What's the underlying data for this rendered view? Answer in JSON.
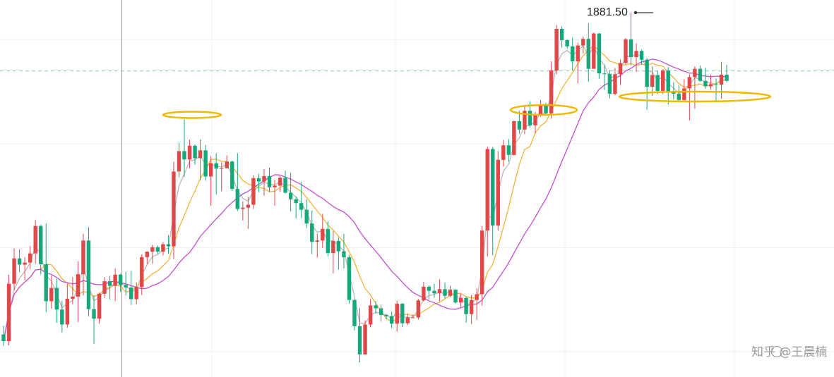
{
  "watermark": "知乎 @王晨楠",
  "chart_data": {
    "type": "candlestick",
    "title": "",
    "xlabel": "",
    "ylabel": "",
    "ylim": [
      1800,
      1890
    ],
    "grid": true,
    "annotations": {
      "high_label": "1881.50",
      "high_value": 1881.5,
      "reference_line": 1867.5
    },
    "colors": {
      "up": "#e04848",
      "down": "#14a87a",
      "ma_fast": "#b8b8b8",
      "ma_mid": "#f0b43c",
      "ma_slow": "#c24fd0",
      "reference": "#8fc9bd",
      "highlight": "#f0b800",
      "crosshair": "#999999"
    },
    "ohlc": [
      [
        1804.1,
        1806.2,
        1801.3,
        1802.5
      ],
      [
        1802.5,
        1818.5,
        1801.5,
        1816.3
      ],
      [
        1816.3,
        1824.8,
        1814.8,
        1822.4
      ],
      [
        1822.4,
        1824.6,
        1819.1,
        1820.9
      ],
      [
        1820.9,
        1822.7,
        1817.1,
        1821.4
      ],
      [
        1821.4,
        1825.4,
        1819.8,
        1823.6
      ],
      [
        1823.6,
        1831.6,
        1821.1,
        1830.2
      ],
      [
        1830.2,
        1830.5,
        1818.5,
        1821.0
      ],
      [
        1821.0,
        1830.8,
        1809.5,
        1812.1
      ],
      [
        1812.1,
        1818.3,
        1810.3,
        1815.3
      ],
      [
        1815.3,
        1817.5,
        1806.9,
        1810.1
      ],
      [
        1810.1,
        1812.2,
        1804.6,
        1806.5
      ],
      [
        1806.5,
        1816.3,
        1805.7,
        1812.7
      ],
      [
        1812.7,
        1817.9,
        1811.3,
        1813.2
      ],
      [
        1813.2,
        1821.7,
        1807.1,
        1818.6
      ],
      [
        1818.6,
        1828.3,
        1813.5,
        1826.7
      ],
      [
        1826.7,
        1829.9,
        1808.5,
        1810.2
      ],
      [
        1810.2,
        1813.5,
        1801.8,
        1807.9
      ],
      [
        1807.9,
        1814.2,
        1806.7,
        1813.9
      ],
      [
        1813.9,
        1817.9,
        1812.9,
        1816.9
      ],
      [
        1816.9,
        1818.2,
        1812.5,
        1815.8
      ],
      [
        1815.8,
        1820.0,
        1812.1,
        1818.5
      ],
      [
        1818.5,
        1818.7,
        1814.3,
        1816.0
      ],
      [
        1816.0,
        1819.2,
        1813.5,
        1815.4
      ],
      [
        1815.4,
        1819.4,
        1811.2,
        1812.6
      ],
      [
        1812.6,
        1816.6,
        1811.3,
        1815.5
      ],
      [
        1815.5,
        1823.4,
        1813.6,
        1822.7
      ],
      [
        1822.7,
        1824.1,
        1821.0,
        1824.0
      ],
      [
        1824.0,
        1825.7,
        1821.1,
        1825.1
      ],
      [
        1825.1,
        1825.5,
        1823.5,
        1824.0
      ],
      [
        1824.0,
        1826.3,
        1823.1,
        1825.8
      ],
      [
        1825.8,
        1828.0,
        1823.5,
        1825.3
      ],
      [
        1825.3,
        1845.7,
        1822.2,
        1843.3
      ],
      [
        1843.3,
        1850.2,
        1841.9,
        1848.2
      ],
      [
        1848.2,
        1855.8,
        1842.0,
        1846.2
      ],
      [
        1846.2,
        1850.9,
        1844.1,
        1849.5
      ],
      [
        1849.5,
        1849.8,
        1844.9,
        1846.5
      ],
      [
        1846.5,
        1851.0,
        1841.2,
        1848.4
      ],
      [
        1848.4,
        1849.7,
        1841.1,
        1842.1
      ],
      [
        1842.1,
        1847.0,
        1835.1,
        1845.3
      ],
      [
        1845.3,
        1847.7,
        1837.8,
        1844.0
      ],
      [
        1844.0,
        1845.5,
        1838.6,
        1844.1
      ],
      [
        1844.1,
        1847.2,
        1844.0,
        1845.7
      ],
      [
        1845.7,
        1845.9,
        1838.6,
        1839.1
      ],
      [
        1839.1,
        1847.7,
        1833.8,
        1834.3
      ],
      [
        1834.3,
        1836.1,
        1831.5,
        1834.6
      ],
      [
        1834.6,
        1837.2,
        1829.5,
        1835.3
      ],
      [
        1835.3,
        1842.4,
        1834.3,
        1841.7
      ],
      [
        1841.7,
        1842.7,
        1838.3,
        1840.9
      ],
      [
        1840.9,
        1843.9,
        1837.5,
        1842.2
      ],
      [
        1842.2,
        1844.2,
        1838.3,
        1839.5
      ],
      [
        1839.5,
        1841.3,
        1835.1,
        1839.9
      ],
      [
        1839.9,
        1842.2,
        1838.4,
        1841.8
      ],
      [
        1841.8,
        1843.5,
        1838.0,
        1838.2
      ],
      [
        1838.2,
        1843.0,
        1833.7,
        1836.6
      ],
      [
        1836.6,
        1837.3,
        1832.0,
        1835.7
      ],
      [
        1835.7,
        1840.8,
        1832.1,
        1834.1
      ],
      [
        1834.1,
        1836.6,
        1829.7,
        1830.8
      ],
      [
        1830.8,
        1833.9,
        1823.4,
        1826.4
      ],
      [
        1826.4,
        1828.4,
        1822.6,
        1826.7
      ],
      [
        1826.7,
        1833.1,
        1824.9,
        1829.5
      ],
      [
        1829.5,
        1831.4,
        1822.9,
        1823.7
      ],
      [
        1823.7,
        1829.0,
        1818.8,
        1826.6
      ],
      [
        1826.6,
        1827.4,
        1819.7,
        1824.1
      ],
      [
        1824.1,
        1828.3,
        1820.0,
        1822.7
      ],
      [
        1822.7,
        1823.3,
        1811.5,
        1812.4
      ],
      [
        1812.4,
        1812.5,
        1805.1,
        1806.1
      ],
      [
        1806.1,
        1810.5,
        1797.4,
        1799.3
      ],
      [
        1799.3,
        1807.5,
        1799.3,
        1806.5
      ],
      [
        1806.5,
        1812.6,
        1805.8,
        1811.1
      ],
      [
        1811.1,
        1812.1,
        1809.1,
        1810.4
      ],
      [
        1810.4,
        1811.3,
        1807.2,
        1808.8
      ],
      [
        1808.8,
        1809.0,
        1807.8,
        1808.5
      ],
      [
        1808.5,
        1809.6,
        1805.6,
        1806.7
      ],
      [
        1806.7,
        1812.2,
        1804.8,
        1811.5
      ],
      [
        1811.5,
        1811.7,
        1805.9,
        1806.8
      ],
      [
        1806.8,
        1809.0,
        1806.4,
        1808.2
      ],
      [
        1808.2,
        1808.9,
        1808.0,
        1808.2
      ],
      [
        1808.2,
        1812.7,
        1807.7,
        1812.3
      ],
      [
        1812.3,
        1816.8,
        1812.0,
        1815.6
      ],
      [
        1815.6,
        1815.9,
        1812.6,
        1814.6
      ],
      [
        1814.6,
        1816.3,
        1812.9,
        1814.0
      ],
      [
        1814.0,
        1817.3,
        1812.1,
        1815.0
      ],
      [
        1815.0,
        1816.6,
        1812.7,
        1813.4
      ],
      [
        1813.4,
        1815.8,
        1813.1,
        1814.9
      ],
      [
        1814.9,
        1815.0,
        1811.5,
        1811.8
      ],
      [
        1811.8,
        1813.9,
        1810.5,
        1812.9
      ],
      [
        1812.9,
        1813.2,
        1806.9,
        1809.0
      ],
      [
        1809.0,
        1813.6,
        1806.6,
        1812.4
      ],
      [
        1812.4,
        1815.2,
        1807.6,
        1813.8
      ],
      [
        1813.8,
        1830.2,
        1811.0,
        1829.1
      ],
      [
        1829.1,
        1849.3,
        1822.9,
        1848.7
      ],
      [
        1848.7,
        1849.2,
        1823.1,
        1830.3
      ],
      [
        1830.3,
        1848.2,
        1829.1,
        1846.1
      ],
      [
        1846.1,
        1850.9,
        1844.5,
        1849.6
      ],
      [
        1849.6,
        1851.1,
        1845.7,
        1847.3
      ],
      [
        1847.3,
        1855.6,
        1847.1,
        1855.4
      ],
      [
        1855.4,
        1857.9,
        1852.4,
        1853.4
      ],
      [
        1853.4,
        1859.2,
        1852.3,
        1857.9
      ],
      [
        1857.9,
        1860.2,
        1853.8,
        1854.4
      ],
      [
        1854.4,
        1857.6,
        1852.5,
        1856.8
      ],
      [
        1856.8,
        1860.5,
        1856.5,
        1859.4
      ],
      [
        1859.4,
        1859.8,
        1856.7,
        1857.3
      ],
      [
        1857.3,
        1869.8,
        1856.0,
        1867.6
      ],
      [
        1867.6,
        1878.6,
        1866.7,
        1877.6
      ],
      [
        1877.6,
        1878.2,
        1873.1,
        1874.9
      ],
      [
        1874.9,
        1875.1,
        1872.9,
        1873.4
      ],
      [
        1873.4,
        1875.5,
        1867.6,
        1869.8
      ],
      [
        1869.8,
        1874.3,
        1864.5,
        1873.6
      ],
      [
        1873.6,
        1875.8,
        1871.7,
        1875.2
      ],
      [
        1875.2,
        1879.0,
        1864.9,
        1868.0
      ],
      [
        1868.0,
        1876.7,
        1868.0,
        1876.5
      ],
      [
        1876.5,
        1876.6,
        1865.6,
        1866.9
      ],
      [
        1866.9,
        1869.0,
        1862.9,
        1866.8
      ],
      [
        1866.8,
        1867.7,
        1860.9,
        1862.0
      ],
      [
        1862.0,
        1868.2,
        1861.6,
        1866.7
      ],
      [
        1866.7,
        1870.2,
        1864.1,
        1869.4
      ],
      [
        1869.4,
        1875.4,
        1869.1,
        1875.1
      ],
      [
        1875.1,
        1881.5,
        1868.8,
        1870.8
      ],
      [
        1870.8,
        1874.1,
        1867.3,
        1872.3
      ],
      [
        1872.3,
        1872.6,
        1869.0,
        1870.2
      ],
      [
        1870.2,
        1870.6,
        1858.2,
        1863.7
      ],
      [
        1863.7,
        1868.6,
        1861.5,
        1866.5
      ],
      [
        1866.5,
        1867.5,
        1861.9,
        1862.7
      ],
      [
        1862.7,
        1867.9,
        1861.9,
        1867.6
      ],
      [
        1867.6,
        1868.4,
        1859.4,
        1862.3
      ],
      [
        1862.3,
        1864.8,
        1860.6,
        1862.0
      ],
      [
        1862.0,
        1864.0,
        1860.3,
        1860.5
      ],
      [
        1860.5,
        1865.5,
        1860.3,
        1863.3
      ],
      [
        1863.3,
        1866.7,
        1855.6,
        1866.0
      ],
      [
        1866.0,
        1868.6,
        1858.4,
        1868.0
      ],
      [
        1868.0,
        1868.8,
        1864.9,
        1865.1
      ],
      [
        1865.1,
        1868.3,
        1863.2,
        1863.8
      ],
      [
        1863.8,
        1866.6,
        1863.0,
        1864.3
      ],
      [
        1864.3,
        1865.7,
        1860.4,
        1864.2
      ],
      [
        1864.2,
        1869.7,
        1860.8,
        1866.6
      ],
      [
        1866.6,
        1869.0,
        1864.8,
        1865.1
      ]
    ]
  }
}
